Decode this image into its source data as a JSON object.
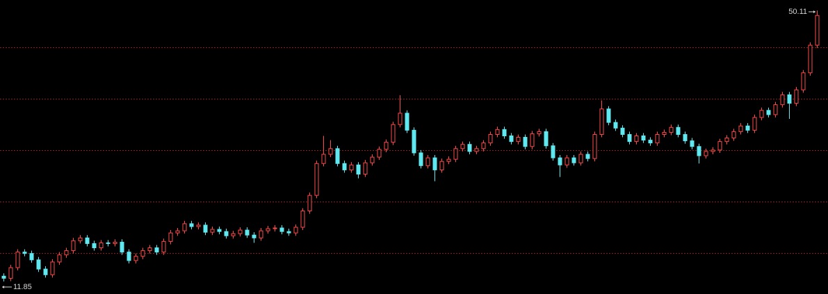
{
  "chart_data": {
    "type": "candlestick",
    "high_label": 50.11,
    "low_label": 11.85,
    "ylim": [
      10.08,
      51.58
    ],
    "up_color": "#ff4a4a",
    "down_color": "#5fe8f0",
    "candles": [
      [
        12.6,
        13.0,
        11.85,
        12.3
      ],
      [
        12.3,
        14.2,
        11.9,
        13.8
      ],
      [
        13.8,
        16.4,
        13.4,
        16.0
      ],
      [
        16.0,
        16.4,
        15.4,
        15.8
      ],
      [
        15.8,
        16.2,
        14.5,
        14.9
      ],
      [
        14.9,
        15.3,
        13.2,
        13.6
      ],
      [
        13.6,
        14.0,
        12.4,
        12.8
      ],
      [
        12.8,
        15.0,
        12.4,
        14.6
      ],
      [
        14.6,
        16.0,
        14.2,
        15.6
      ],
      [
        15.6,
        16.6,
        15.2,
        16.2
      ],
      [
        16.2,
        18.0,
        15.8,
        17.6
      ],
      [
        17.6,
        18.4,
        17.2,
        18.0
      ],
      [
        18.0,
        18.4,
        16.8,
        17.2
      ],
      [
        17.2,
        17.6,
        16.2,
        16.6
      ],
      [
        16.6,
        17.7,
        16.2,
        17.3
      ],
      [
        17.3,
        17.7,
        16.8,
        17.2
      ],
      [
        17.2,
        17.8,
        16.8,
        17.4
      ],
      [
        17.4,
        17.8,
        15.6,
        16.0
      ],
      [
        16.0,
        16.4,
        14.4,
        14.8
      ],
      [
        14.8,
        15.8,
        14.4,
        15.4
      ],
      [
        15.4,
        16.6,
        15.0,
        16.2
      ],
      [
        16.2,
        17.0,
        15.8,
        16.6
      ],
      [
        16.6,
        17.0,
        15.6,
        16.0
      ],
      [
        16.0,
        17.9,
        15.6,
        17.5
      ],
      [
        17.5,
        19.1,
        17.1,
        18.7
      ],
      [
        18.7,
        19.4,
        18.3,
        19.0
      ],
      [
        19.0,
        20.4,
        18.6,
        20.0
      ],
      [
        20.0,
        20.4,
        19.2,
        19.6
      ],
      [
        19.6,
        20.2,
        19.2,
        19.8
      ],
      [
        19.8,
        20.2,
        18.4,
        18.8
      ],
      [
        18.8,
        19.6,
        18.4,
        19.2
      ],
      [
        19.2,
        19.6,
        18.5,
        18.9
      ],
      [
        18.9,
        19.3,
        17.9,
        18.3
      ],
      [
        18.3,
        19.0,
        17.9,
        18.6
      ],
      [
        18.6,
        19.5,
        18.2,
        19.1
      ],
      [
        19.1,
        19.5,
        18.0,
        18.4
      ],
      [
        18.4,
        18.8,
        17.3,
        18.0
      ],
      [
        18.0,
        19.4,
        17.6,
        19.0
      ],
      [
        19.0,
        19.7,
        18.6,
        19.3
      ],
      [
        19.3,
        19.8,
        18.9,
        19.4
      ],
      [
        19.4,
        19.8,
        18.5,
        18.9
      ],
      [
        18.9,
        19.3,
        18.3,
        18.7
      ],
      [
        18.7,
        19.9,
        18.3,
        19.5
      ],
      [
        19.5,
        22.2,
        19.1,
        21.8
      ],
      [
        21.8,
        24.4,
        21.4,
        24.0
      ],
      [
        24.0,
        28.9,
        23.6,
        28.5
      ],
      [
        28.5,
        32.4,
        28.1,
        29.8
      ],
      [
        29.8,
        31.8,
        29.4,
        30.6
      ],
      [
        30.6,
        31.0,
        28.1,
        28.5
      ],
      [
        28.5,
        28.9,
        27.2,
        27.6
      ],
      [
        27.6,
        28.7,
        27.2,
        28.3
      ],
      [
        28.3,
        28.7,
        26.4,
        27.0
      ],
      [
        27.0,
        29.0,
        26.6,
        28.6
      ],
      [
        28.6,
        29.8,
        28.2,
        29.4
      ],
      [
        29.4,
        30.9,
        29.0,
        30.5
      ],
      [
        30.5,
        31.9,
        30.1,
        31.5
      ],
      [
        31.5,
        34.4,
        31.1,
        34.0
      ],
      [
        34.0,
        38.14,
        33.6,
        35.6
      ],
      [
        35.6,
        36.0,
        32.8,
        33.2
      ],
      [
        33.2,
        33.6,
        29.6,
        30.0
      ],
      [
        30.0,
        30.4,
        27.8,
        28.2
      ],
      [
        28.2,
        29.7,
        27.8,
        29.3
      ],
      [
        29.3,
        29.7,
        26.0,
        27.6
      ],
      [
        27.6,
        29.2,
        27.2,
        28.8
      ],
      [
        28.8,
        29.5,
        28.4,
        29.1
      ],
      [
        29.1,
        31.0,
        28.7,
        30.6
      ],
      [
        30.6,
        31.6,
        30.2,
        31.2
      ],
      [
        31.2,
        31.6,
        29.8,
        30.2
      ],
      [
        30.2,
        31.0,
        29.8,
        30.6
      ],
      [
        30.6,
        31.8,
        30.2,
        31.4
      ],
      [
        31.4,
        33.0,
        31.0,
        32.6
      ],
      [
        32.6,
        33.7,
        32.2,
        33.3
      ],
      [
        33.3,
        33.7,
        32.0,
        32.4
      ],
      [
        32.4,
        32.8,
        31.2,
        31.6
      ],
      [
        31.6,
        32.6,
        31.2,
        32.2
      ],
      [
        32.2,
        32.6,
        30.5,
        30.9
      ],
      [
        30.9,
        33.1,
        30.5,
        32.7
      ],
      [
        32.7,
        33.4,
        32.3,
        33.0
      ],
      [
        33.0,
        33.4,
        30.6,
        31.0
      ],
      [
        31.0,
        31.4,
        28.9,
        29.3
      ],
      [
        29.3,
        29.7,
        26.6,
        28.3
      ],
      [
        28.3,
        29.7,
        27.9,
        29.3
      ],
      [
        29.3,
        29.7,
        28.2,
        28.6
      ],
      [
        28.6,
        30.2,
        28.2,
        29.8
      ],
      [
        29.8,
        30.2,
        28.8,
        29.2
      ],
      [
        29.2,
        33.0,
        28.8,
        32.6
      ],
      [
        32.6,
        37.4,
        32.2,
        36.2
      ],
      [
        36.2,
        36.6,
        33.9,
        34.3
      ],
      [
        34.3,
        34.7,
        33.1,
        33.5
      ],
      [
        33.5,
        33.9,
        32.2,
        32.6
      ],
      [
        32.6,
        33.0,
        31.2,
        31.6
      ],
      [
        31.6,
        32.8,
        31.2,
        32.4
      ],
      [
        32.4,
        32.8,
        31.4,
        31.8
      ],
      [
        31.8,
        32.2,
        31.0,
        31.4
      ],
      [
        31.4,
        33.0,
        31.0,
        32.6
      ],
      [
        32.6,
        33.3,
        32.2,
        32.9
      ],
      [
        32.9,
        34.0,
        32.5,
        33.6
      ],
      [
        33.6,
        34.0,
        32.2,
        32.6
      ],
      [
        32.6,
        33.0,
        31.3,
        31.7
      ],
      [
        31.7,
        32.1,
        30.5,
        30.9
      ],
      [
        30.9,
        31.3,
        28.5,
        29.6
      ],
      [
        29.6,
        30.6,
        29.2,
        30.2
      ],
      [
        30.2,
        30.8,
        29.8,
        30.4
      ],
      [
        30.4,
        32.0,
        30.0,
        31.6
      ],
      [
        31.6,
        32.5,
        31.2,
        32.1
      ],
      [
        32.1,
        33.4,
        31.7,
        33.0
      ],
      [
        33.0,
        34.2,
        32.6,
        33.8
      ],
      [
        33.8,
        34.2,
        32.8,
        33.2
      ],
      [
        33.2,
        35.4,
        32.8,
        35.0
      ],
      [
        35.0,
        36.4,
        34.6,
        36.0
      ],
      [
        36.0,
        36.4,
        35.0,
        35.4
      ],
      [
        35.4,
        37.2,
        35.0,
        36.8
      ],
      [
        36.8,
        38.6,
        36.4,
        38.2
      ],
      [
        38.2,
        38.6,
        34.8,
        37.0
      ],
      [
        37.0,
        39.3,
        36.6,
        38.9
      ],
      [
        38.9,
        41.7,
        38.5,
        41.3
      ],
      [
        41.3,
        45.6,
        40.9,
        45.2
      ],
      [
        45.2,
        50.11,
        44.8,
        49.4
      ]
    ]
  }
}
